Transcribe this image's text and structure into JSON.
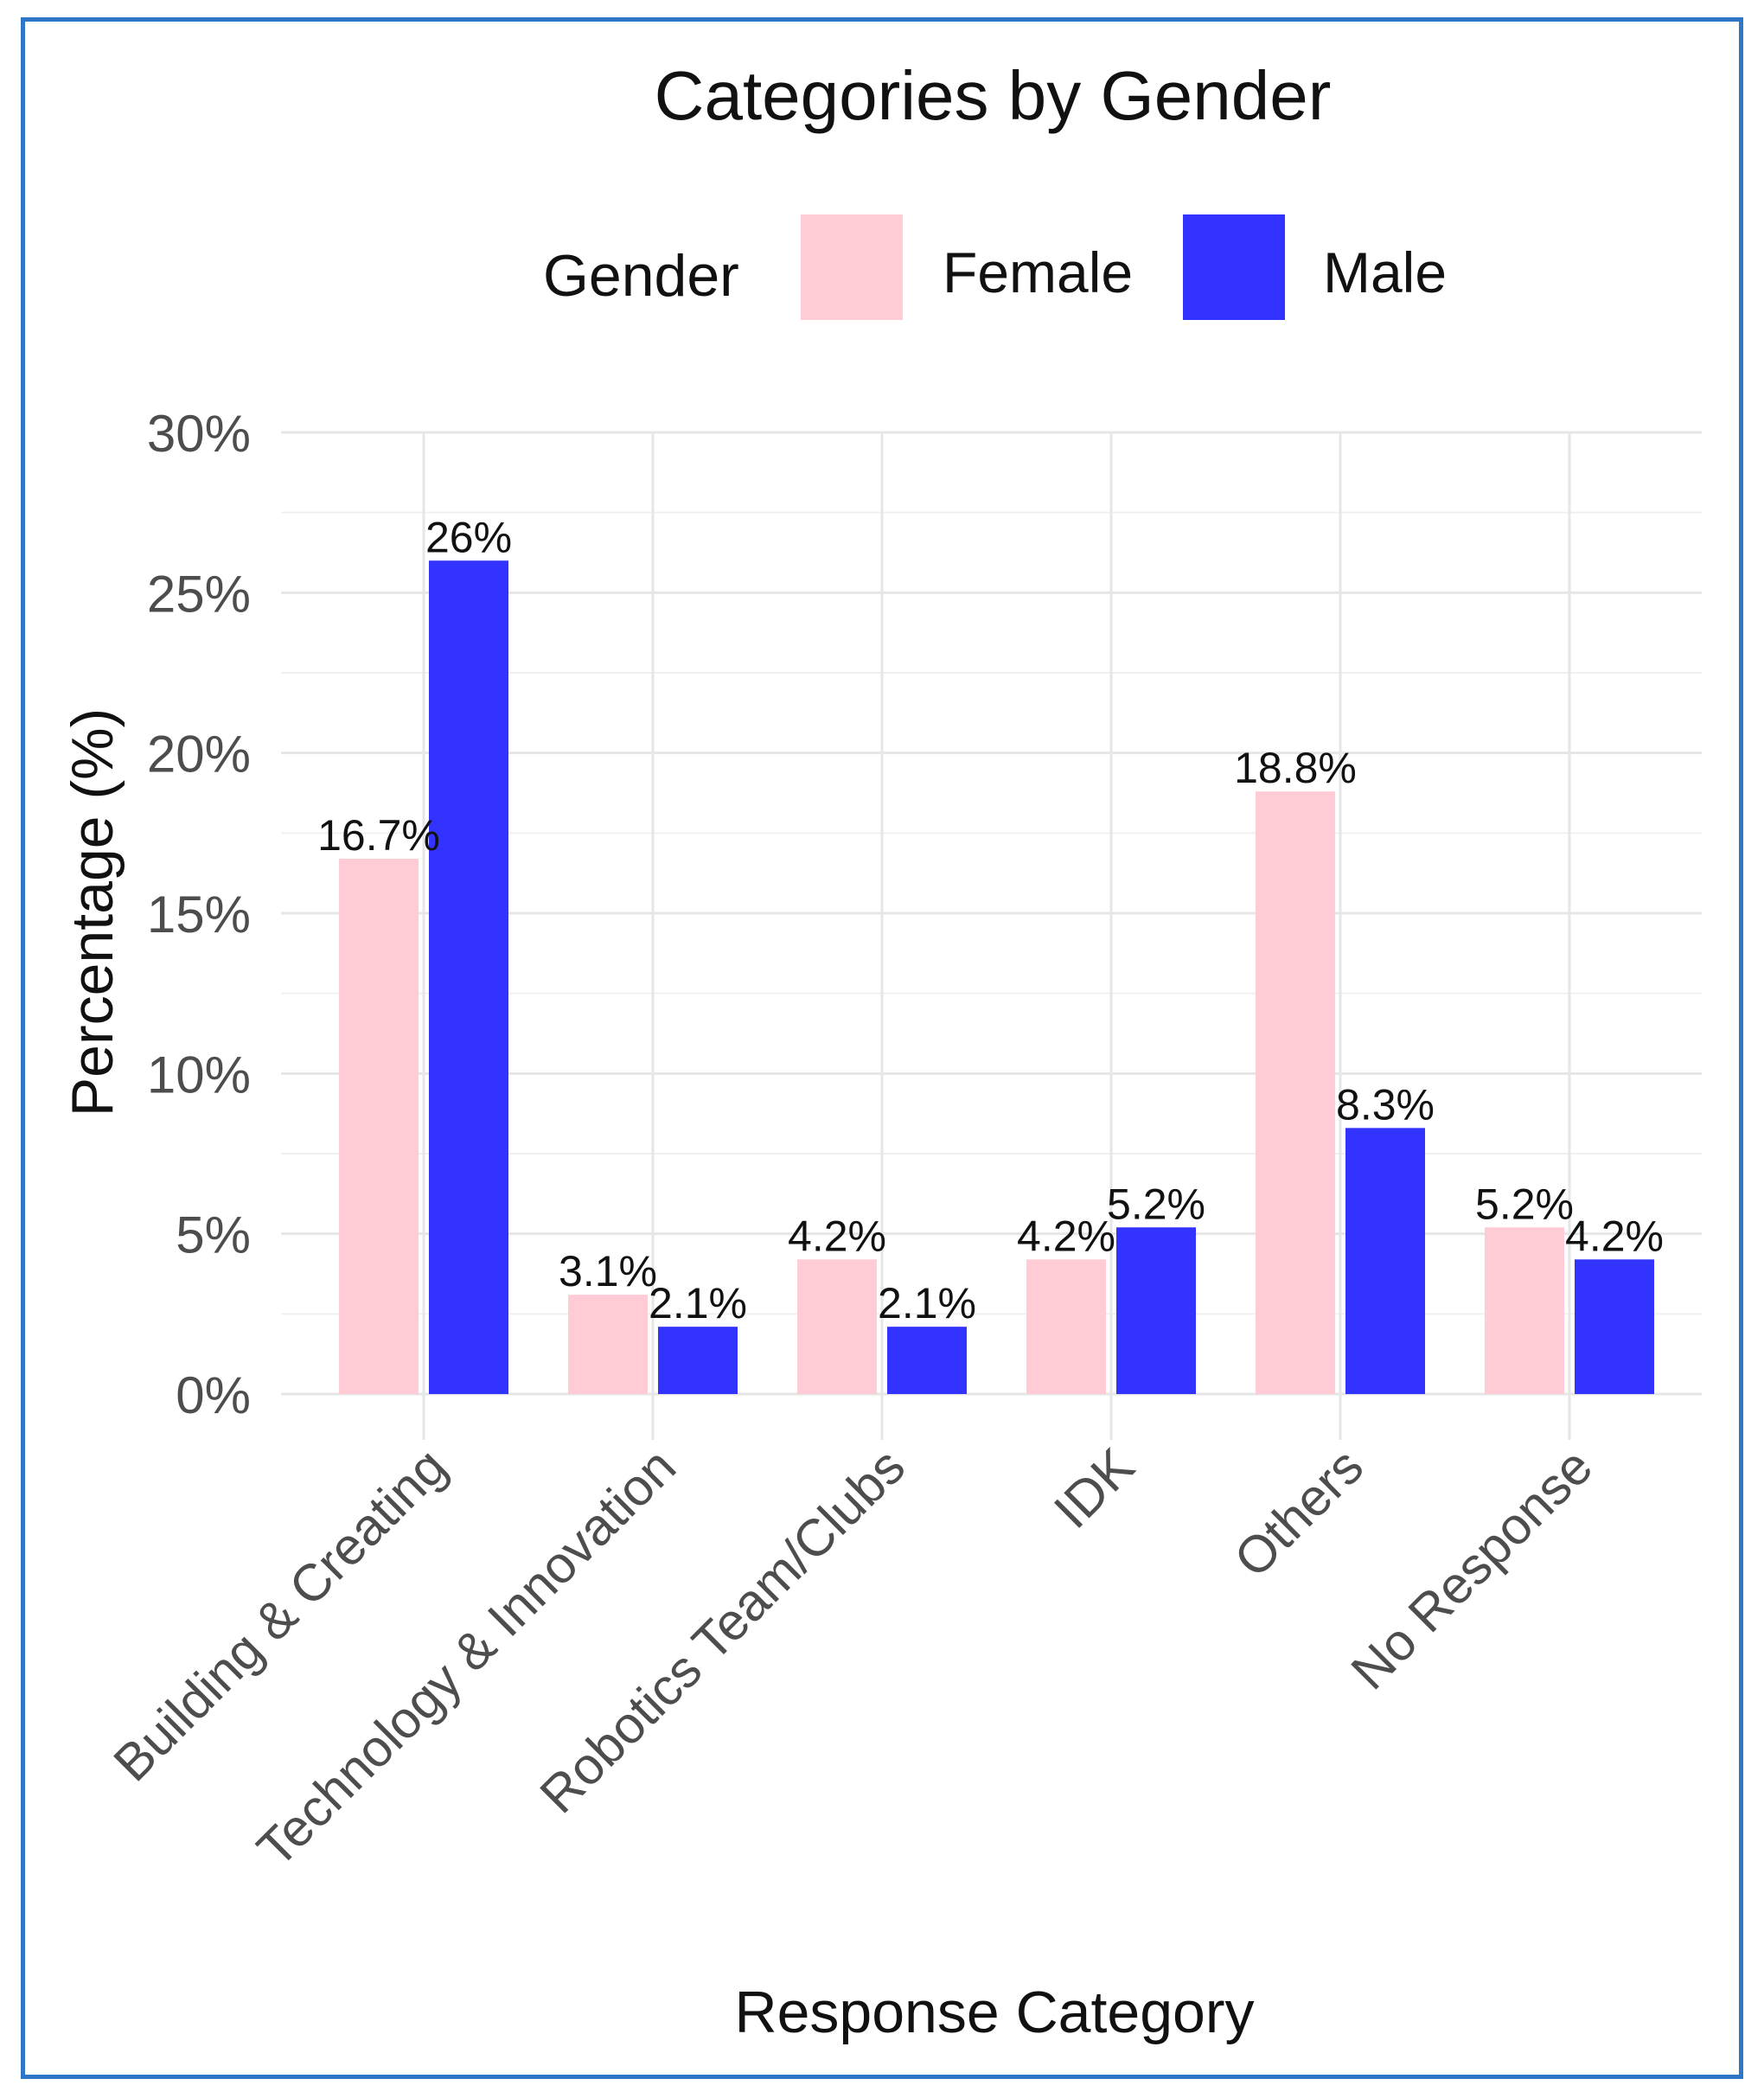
{
  "chart_data": {
    "type": "bar",
    "title": "Categories by Gender",
    "xlabel": "Response Category",
    "ylabel": "Percentage (%)",
    "ylim": [
      0,
      30
    ],
    "y_ticks": [
      0,
      5,
      10,
      15,
      20,
      25,
      30
    ],
    "y_tick_labels": [
      "0%",
      "5%",
      "10%",
      "15%",
      "20%",
      "25%",
      "30%"
    ],
    "grid": true,
    "legend": {
      "title": "Gender",
      "placement": "top"
    },
    "categories": [
      "Building & Creating",
      "Technology & Innovation",
      "Robotics Team/Clubs",
      "IDK",
      "Others",
      "No Response"
    ],
    "series": [
      {
        "name": "Female",
        "color": "#ffccd6",
        "values": [
          16.7,
          3.1,
          4.2,
          4.2,
          18.8,
          5.2
        ],
        "labels": [
          "16.7%",
          "3.1%",
          "4.2%",
          "4.2%",
          "18.8%",
          "5.2%"
        ]
      },
      {
        "name": "Male",
        "color": "#3333ff",
        "values": [
          26,
          2.1,
          2.1,
          5.2,
          8.3,
          4.2
        ],
        "labels": [
          "26%",
          "2.1%",
          "2.1%",
          "5.2%",
          "8.3%",
          "4.2%"
        ]
      }
    ]
  }
}
